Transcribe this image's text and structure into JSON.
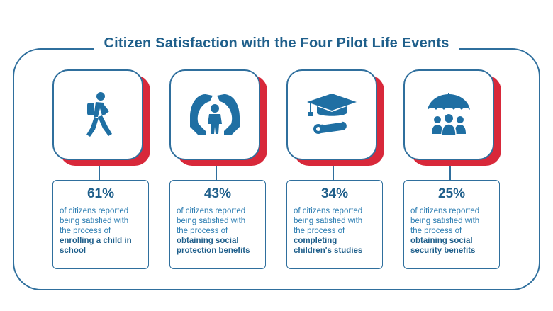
{
  "title": "Citizen Satisfaction with the Four Pilot Life Events",
  "cards": [
    {
      "icon": "walking-child-icon",
      "percent": "61%",
      "text": "of citizens reported being satisfied with the process of",
      "bold": "enrolling a child in school"
    },
    {
      "icon": "protecting-hands-icon",
      "percent": "43%",
      "text": "of citizens reported being satisfied with the process of",
      "bold": "obtaining social protection benefits"
    },
    {
      "icon": "graduation-cap-icon",
      "percent": "34%",
      "text": "of citizens reported being satisfied with the process of",
      "bold": "completing children's studies"
    },
    {
      "icon": "umbrella-family-icon",
      "percent": "25%",
      "text": "of citizens reported being satisfied with the process of",
      "bold": "obtaining social security benefits"
    }
  ],
  "colors": {
    "primary": "#1f5f8b",
    "accent": "#d8283a",
    "text": "#2f7fb3"
  }
}
